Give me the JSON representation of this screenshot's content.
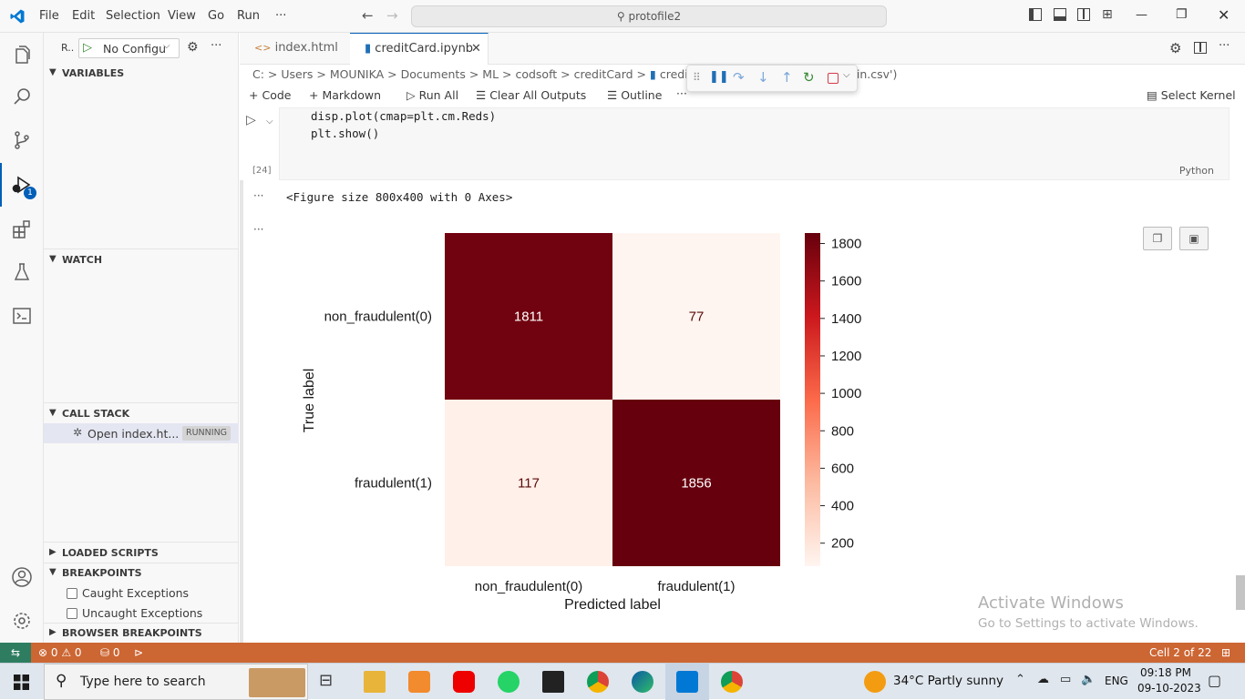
{
  "titlebar": {
    "menus": [
      "File",
      "Edit",
      "Selection",
      "View",
      "Go",
      "Run",
      "···"
    ],
    "search": "protofile2"
  },
  "sidebar": {
    "run_label": "R..",
    "config": "No Configu",
    "variables": "VARIABLES",
    "watch": "WATCH",
    "call_stack": "CALL STACK",
    "stack_item": "Open index.ht...",
    "stack_status": "RUNNING",
    "loaded_scripts": "LOADED SCRIPTS",
    "breakpoints": "BREAKPOINTS",
    "caught": "Caught Exceptions",
    "uncaught": "Uncaught Exceptions",
    "browser_breakpoints": "BROWSER BREAKPOINTS"
  },
  "activity": {
    "debug_badge": "1"
  },
  "tabs": [
    {
      "label": "index.html"
    },
    {
      "label": "creditCard.ipynb"
    }
  ],
  "breadcrumb": {
    "parts": [
      "C:",
      "Users",
      "MOUNIKA",
      "Documents",
      "ML",
      "codsoft",
      "creditCard",
      "creditCar"
    ],
    "tail": "('Train.csv')"
  },
  "toolbar": {
    "code": "Code",
    "markdown": "Markdown",
    "run_all": "Run All",
    "clear": "Clear All Outputs",
    "outline": "Outline",
    "more": "···",
    "kernel": "Select Kernel"
  },
  "cell": {
    "line1": "disp.plot(cmap=plt.cm.Reds)",
    "line2": "plt.show()",
    "exec_count": "[24]",
    "language": "Python"
  },
  "output": {
    "ellipsis": "···",
    "figure_text": "<Figure size 800x400 with 0 Axes>"
  },
  "chart_data": {
    "type": "heatmap",
    "rows": [
      "non_fraudulent(0)",
      "fraudulent(1)"
    ],
    "cols": [
      "non_fraudulent(0)",
      "fraudulent(1)"
    ],
    "values": [
      [
        1811,
        77
      ],
      [
        117,
        1856
      ]
    ],
    "xlabel": "Predicted label",
    "ylabel": "True label",
    "colorbar_ticks": [
      1800,
      1600,
      1400,
      1200,
      1000,
      800,
      600,
      400,
      200
    ],
    "colorbar_range": [
      77,
      1856
    ],
    "cmap": "Reds"
  },
  "watermark": {
    "line1": "Activate Windows",
    "line2": "Go to Settings to activate Windows."
  },
  "statusbar": {
    "errors": "0",
    "warnings": "0",
    "ports": "0",
    "cell": "Cell 2 of 22"
  },
  "taskbar": {
    "search": "Type here to search",
    "weather": "34°C  Partly sunny",
    "lang": "ENG",
    "time": "09:18 PM",
    "date": "09-10-2023"
  },
  "colors": {
    "accent": "#005fb8",
    "status": "#cc6633"
  }
}
